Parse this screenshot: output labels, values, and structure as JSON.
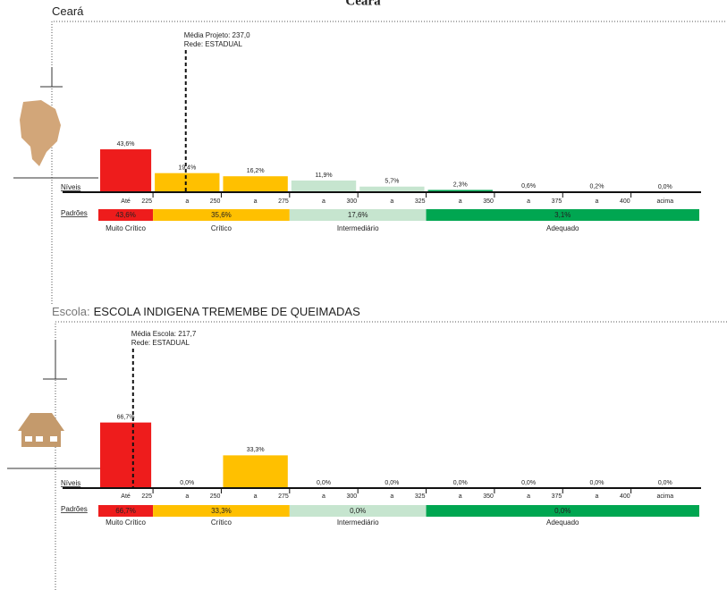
{
  "page_title": "Ceará",
  "chart_data": [
    {
      "type": "histogram",
      "title_prefix": "",
      "title": "Ceará",
      "marker": {
        "value": 237.0,
        "lines": [
          "Média Projeto: 237,0",
          "Rede: ESTADUAL"
        ]
      },
      "levels_label": "Níveis",
      "standards_label": "Padrões",
      "bins": [
        205,
        225,
        250,
        275,
        300,
        325,
        350,
        375,
        400,
        425
      ],
      "categories": [
        "Até",
        "a",
        "a",
        "a",
        "a",
        "a",
        "a",
        "a",
        "acima"
      ],
      "values": [
        43.6,
        19.4,
        16.2,
        11.9,
        5.7,
        2.3,
        0.6,
        0.2,
        0.0
      ],
      "value_labels": [
        "43,6%",
        "19,4%",
        "16,2%",
        "11,9%",
        "5,7%",
        "2,3%",
        "0,6%",
        "0,2%",
        "0,0%"
      ],
      "colors": [
        "#ee1c1c",
        "#ffc000",
        "#ffc000",
        "#c6e5cf",
        "#c6e5cf",
        "#00a651",
        "#00a651",
        "#00a651",
        "#00a651"
      ],
      "xlim": [
        205,
        425
      ],
      "xticks": [
        225,
        250,
        275,
        300,
        325,
        350,
        375,
        400
      ],
      "ylim": [
        0,
        100
      ],
      "bands": [
        {
          "name": "Muito Crítico",
          "value": 43.6,
          "value_label": "43,6%",
          "from": 205,
          "to": 225,
          "color": "#ee1c1c"
        },
        {
          "name": "Crítico",
          "value": 35.6,
          "value_label": "35,6%",
          "from": 225,
          "to": 275,
          "color": "#ffc000"
        },
        {
          "name": "Intermediário",
          "value": 17.6,
          "value_label": "17,6%",
          "from": 275,
          "to": 325,
          "color": "#c6e5cf"
        },
        {
          "name": "Adequado",
          "value": 3.1,
          "value_label": "3,1%",
          "from": 325,
          "to": 425,
          "color": "#00a651"
        }
      ]
    },
    {
      "type": "histogram",
      "title_prefix": "Escola:",
      "title": "ESCOLA INDIGENA TREMEMBE DE QUEIMADAS",
      "marker": {
        "value": 217.7,
        "lines": [
          "Média Escola: 217,7",
          "Rede: ESTADUAL"
        ]
      },
      "levels_label": "Níveis",
      "standards_label": "Padrões",
      "bins": [
        205,
        225,
        250,
        275,
        300,
        325,
        350,
        375,
        400,
        425
      ],
      "categories": [
        "Até",
        "a",
        "a",
        "a",
        "a",
        "a",
        "a",
        "a",
        "acima"
      ],
      "values": [
        66.7,
        0.0,
        33.3,
        0.0,
        0.0,
        0.0,
        0.0,
        0.0,
        0.0
      ],
      "value_labels": [
        "66,7%",
        "0,0%",
        "33,3%",
        "0,0%",
        "0,0%",
        "0,0%",
        "0,0%",
        "0,0%",
        "0,0%"
      ],
      "colors": [
        "#ee1c1c",
        "#ffc000",
        "#ffc000",
        "#c6e5cf",
        "#c6e5cf",
        "#00a651",
        "#00a651",
        "#00a651",
        "#00a651"
      ],
      "xlim": [
        205,
        425
      ],
      "xticks": [
        225,
        250,
        275,
        300,
        325,
        350,
        375,
        400
      ],
      "ylim": [
        0,
        100
      ],
      "bands": [
        {
          "name": "Muito Crítico",
          "value": 66.7,
          "value_label": "66,7%",
          "from": 205,
          "to": 225,
          "color": "#ee1c1c"
        },
        {
          "name": "Crítico",
          "value": 33.3,
          "value_label": "33,3%",
          "from": 225,
          "to": 275,
          "color": "#ffc000"
        },
        {
          "name": "Intermediário",
          "value": 0.0,
          "value_label": "0,0%",
          "from": 275,
          "to": 325,
          "color": "#c6e5cf"
        },
        {
          "name": "Adequado",
          "value": 0.0,
          "value_label": "0,0%",
          "from": 325,
          "to": 425,
          "color": "#00a651"
        }
      ]
    }
  ]
}
